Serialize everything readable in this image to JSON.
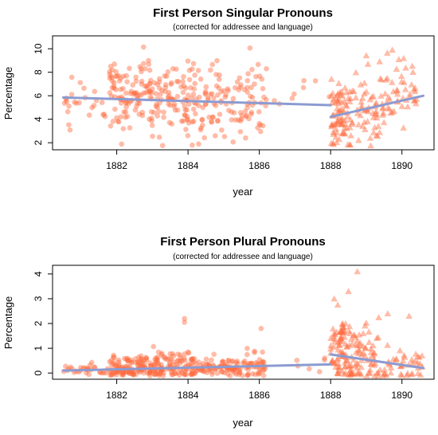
{
  "colors": {
    "point": "#FF6A3D",
    "trend": "#8C9BD1",
    "axis": "#000000"
  },
  "chart_data": [
    {
      "type": "scatter",
      "title": "First Person Singular Pronouns",
      "subtitle": "(corrected for addressee and language)",
      "xlabel": "year",
      "ylabel": "Percentage",
      "xlim": [
        1880.2,
        1890.9
      ],
      "ylim": [
        1.4,
        11.1
      ],
      "x_ticks": [
        1882,
        1884,
        1886,
        1888,
        1890
      ],
      "y_ticks": [
        2,
        4,
        6,
        8,
        10
      ],
      "grid": false,
      "point_shapes": {
        "before_1888": "circle",
        "after_1888": "triangle"
      },
      "trend_lines": [
        {
          "x": [
            1880.5,
            1888.0
          ],
          "y": [
            5.85,
            5.2
          ]
        },
        {
          "x": [
            1888.0,
            1890.6
          ],
          "y": [
            4.2,
            6.0
          ]
        }
      ],
      "cloud_summary": [
        {
          "x_range": [
            1880.5,
            1881.8
          ],
          "y_mean": 5.6,
          "y_sd": 1.0,
          "n": 25
        },
        {
          "x_range": [
            1881.8,
            1883.0
          ],
          "y_mean": 6.0,
          "y_sd": 1.6,
          "n": 110
        },
        {
          "x_range": [
            1883.0,
            1884.3
          ],
          "y_mean": 5.6,
          "y_sd": 1.5,
          "n": 100
        },
        {
          "x_range": [
            1884.3,
            1885.5
          ],
          "y_mean": 5.5,
          "y_sd": 1.5,
          "n": 70
        },
        {
          "x_range": [
            1885.5,
            1886.2
          ],
          "y_mean": 5.3,
          "y_sd": 1.6,
          "n": 40
        },
        {
          "x_range": [
            1886.2,
            1888.0
          ],
          "y_mean": 5.6,
          "y_sd": 1.3,
          "n": 8
        },
        {
          "x_range": [
            1888.0,
            1888.6
          ],
          "y_mean": 4.4,
          "y_sd": 1.4,
          "n": 80
        },
        {
          "x_range": [
            1888.6,
            1889.5
          ],
          "y_mean": 5.0,
          "y_sd": 1.6,
          "n": 60
        },
        {
          "x_range": [
            1889.5,
            1890.6
          ],
          "y_mean": 5.8,
          "y_sd": 1.6,
          "n": 45
        }
      ]
    },
    {
      "type": "scatter",
      "title": "First Person Plural Pronouns",
      "subtitle": "(corrected for addressee and language)",
      "xlabel": "year",
      "ylabel": "Percentage",
      "xlim": [
        1880.2,
        1890.9
      ],
      "ylim": [
        -0.25,
        4.35
      ],
      "x_ticks": [
        1882,
        1884,
        1886,
        1888,
        1890
      ],
      "y_ticks": [
        0,
        1,
        2,
        3,
        4
      ],
      "grid": false,
      "point_shapes": {
        "before_1888": "circle",
        "after_1888": "triangle"
      },
      "trend_lines": [
        {
          "x": [
            1880.5,
            1888.0
          ],
          "y": [
            0.1,
            0.35
          ]
        },
        {
          "x": [
            1888.0,
            1890.6
          ],
          "y": [
            0.75,
            0.2
          ]
        }
      ],
      "cloud_summary": [
        {
          "x_range": [
            1880.5,
            1881.8
          ],
          "y_mean": 0.12,
          "y_sd": 0.12,
          "n": 30
        },
        {
          "x_range": [
            1881.8,
            1883.0
          ],
          "y_mean": 0.2,
          "y_sd": 0.25,
          "n": 120
        },
        {
          "x_range": [
            1883.0,
            1884.3
          ],
          "y_mean": 0.25,
          "y_sd": 0.35,
          "n": 120
        },
        {
          "x_range": [
            1884.3,
            1885.5
          ],
          "y_mean": 0.22,
          "y_sd": 0.2,
          "n": 80
        },
        {
          "x_range": [
            1885.5,
            1886.2
          ],
          "y_mean": 0.25,
          "y_sd": 0.3,
          "n": 45
        },
        {
          "x_range": [
            1886.2,
            1888.0
          ],
          "y_mean": 0.3,
          "y_sd": 0.2,
          "n": 6
        },
        {
          "x_range": [
            1888.0,
            1888.6
          ],
          "y_mean": 0.9,
          "y_sd": 0.8,
          "n": 90
        },
        {
          "x_range": [
            1888.6,
            1889.5
          ],
          "y_mean": 0.6,
          "y_sd": 0.7,
          "n": 65
        },
        {
          "x_range": [
            1889.5,
            1890.6
          ],
          "y_mean": 0.3,
          "y_sd": 0.4,
          "n": 40
        }
      ],
      "notable_points": [
        {
          "x": 1888.75,
          "y": 4.1
        },
        {
          "x": 1883.9,
          "y": 2.2
        },
        {
          "x": 1883.9,
          "y": 2.05
        },
        {
          "x": 1886.05,
          "y": 1.8
        },
        {
          "x": 1888.1,
          "y": 3.0
        },
        {
          "x": 1888.5,
          "y": 3.3
        },
        {
          "x": 1888.2,
          "y": 2.75
        },
        {
          "x": 1889.6,
          "y": 2.4
        },
        {
          "x": 1890.2,
          "y": 2.3
        }
      ]
    }
  ]
}
